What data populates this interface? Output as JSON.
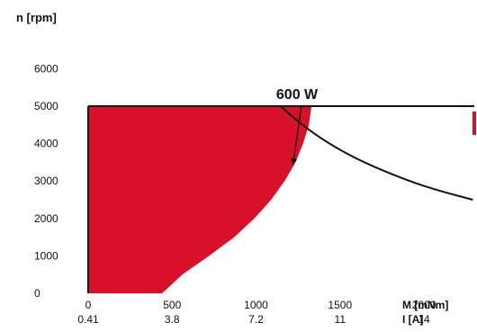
{
  "chart_data": {
    "type": "area",
    "ylabel": "n [rpm]",
    "xlabel": "M [mNm]",
    "xlabel2": "I [A]",
    "xlim": [
      0,
      2300
    ],
    "ylim": [
      0,
      6000
    ],
    "plot_ylim": [
      0,
      5000
    ],
    "yticks": [
      0,
      1000,
      2000,
      3000,
      4000,
      5000,
      6000
    ],
    "xticks": [
      {
        "torque": 0,
        "torque_label": "0",
        "current_label": "0.41"
      },
      {
        "torque": 500,
        "torque_label": "500",
        "current_label": "3.8"
      },
      {
        "torque": 1000,
        "torque_label": "1000",
        "current_label": "7.2"
      },
      {
        "torque": 1500,
        "torque_label": "1500",
        "current_label": "11"
      },
      {
        "torque": 2000,
        "torque_label": "2000",
        "current_label": "14"
      }
    ],
    "operating_region": {
      "color": "#d8102a",
      "boundary": [
        {
          "x": 0,
          "y": 5000
        },
        {
          "x": 1330,
          "y": 5000
        },
        {
          "x": 1315,
          "y": 4500
        },
        {
          "x": 1280,
          "y": 4000
        },
        {
          "x": 1235,
          "y": 3500
        },
        {
          "x": 1170,
          "y": 3000
        },
        {
          "x": 1090,
          "y": 2500
        },
        {
          "x": 990,
          "y": 2000
        },
        {
          "x": 870,
          "y": 1500
        },
        {
          "x": 720,
          "y": 1000
        },
        {
          "x": 560,
          "y": 500
        },
        {
          "x": 440,
          "y": 0
        },
        {
          "x": 0,
          "y": 0
        }
      ]
    },
    "power_curve": {
      "name": "600 W",
      "color": "#111111",
      "points": [
        {
          "x": 1146,
          "y": 5000
        },
        {
          "x": 1273,
          "y": 4500
        },
        {
          "x": 1432,
          "y": 4000
        },
        {
          "x": 1637,
          "y": 3500
        },
        {
          "x": 1910,
          "y": 3000
        },
        {
          "x": 2083,
          "y": 2750
        },
        {
          "x": 2291,
          "y": 2500
        }
      ]
    },
    "annotation": {
      "text": "600 W",
      "text_at": {
        "x": 1120,
        "y": 5150
      },
      "arrow_to": {
        "x": 1220,
        "y": 3430
      }
    },
    "edge_marker_color": "#d8102a"
  }
}
